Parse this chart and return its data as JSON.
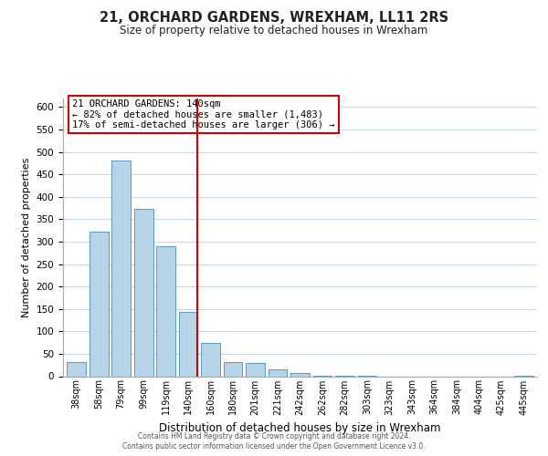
{
  "title": "21, ORCHARD GARDENS, WREXHAM, LL11 2RS",
  "subtitle": "Size of property relative to detached houses in Wrexham",
  "xlabel": "Distribution of detached houses by size in Wrexham",
  "ylabel": "Number of detached properties",
  "bar_labels": [
    "38sqm",
    "58sqm",
    "79sqm",
    "99sqm",
    "119sqm",
    "140sqm",
    "160sqm",
    "180sqm",
    "201sqm",
    "221sqm",
    "242sqm",
    "262sqm",
    "282sqm",
    "303sqm",
    "323sqm",
    "343sqm",
    "364sqm",
    "384sqm",
    "404sqm",
    "425sqm",
    "445sqm"
  ],
  "bar_values": [
    32,
    322,
    481,
    374,
    290,
    144,
    75,
    32,
    29,
    16,
    8,
    2,
    1,
    1,
    0,
    0,
    0,
    0,
    0,
    0,
    2
  ],
  "bar_color": "#b8d4e8",
  "bar_edge_color": "#5a9abf",
  "highlight_index": 5,
  "highlight_line_color": "#cc0000",
  "ylim": [
    0,
    620
  ],
  "yticks": [
    0,
    50,
    100,
    150,
    200,
    250,
    300,
    350,
    400,
    450,
    500,
    550,
    600
  ],
  "annotation_title": "21 ORCHARD GARDENS: 140sqm",
  "annotation_line1": "← 82% of detached houses are smaller (1,483)",
  "annotation_line2": "17% of semi-detached houses are larger (306) →",
  "annotation_box_color": "#ffffff",
  "annotation_box_edge": "#cc0000",
  "footer_line1": "Contains HM Land Registry data © Crown copyright and database right 2024.",
  "footer_line2": "Contains public sector information licensed under the Open Government Licence v3.0.",
  "background_color": "#ffffff",
  "grid_color": "#c8d8e8"
}
